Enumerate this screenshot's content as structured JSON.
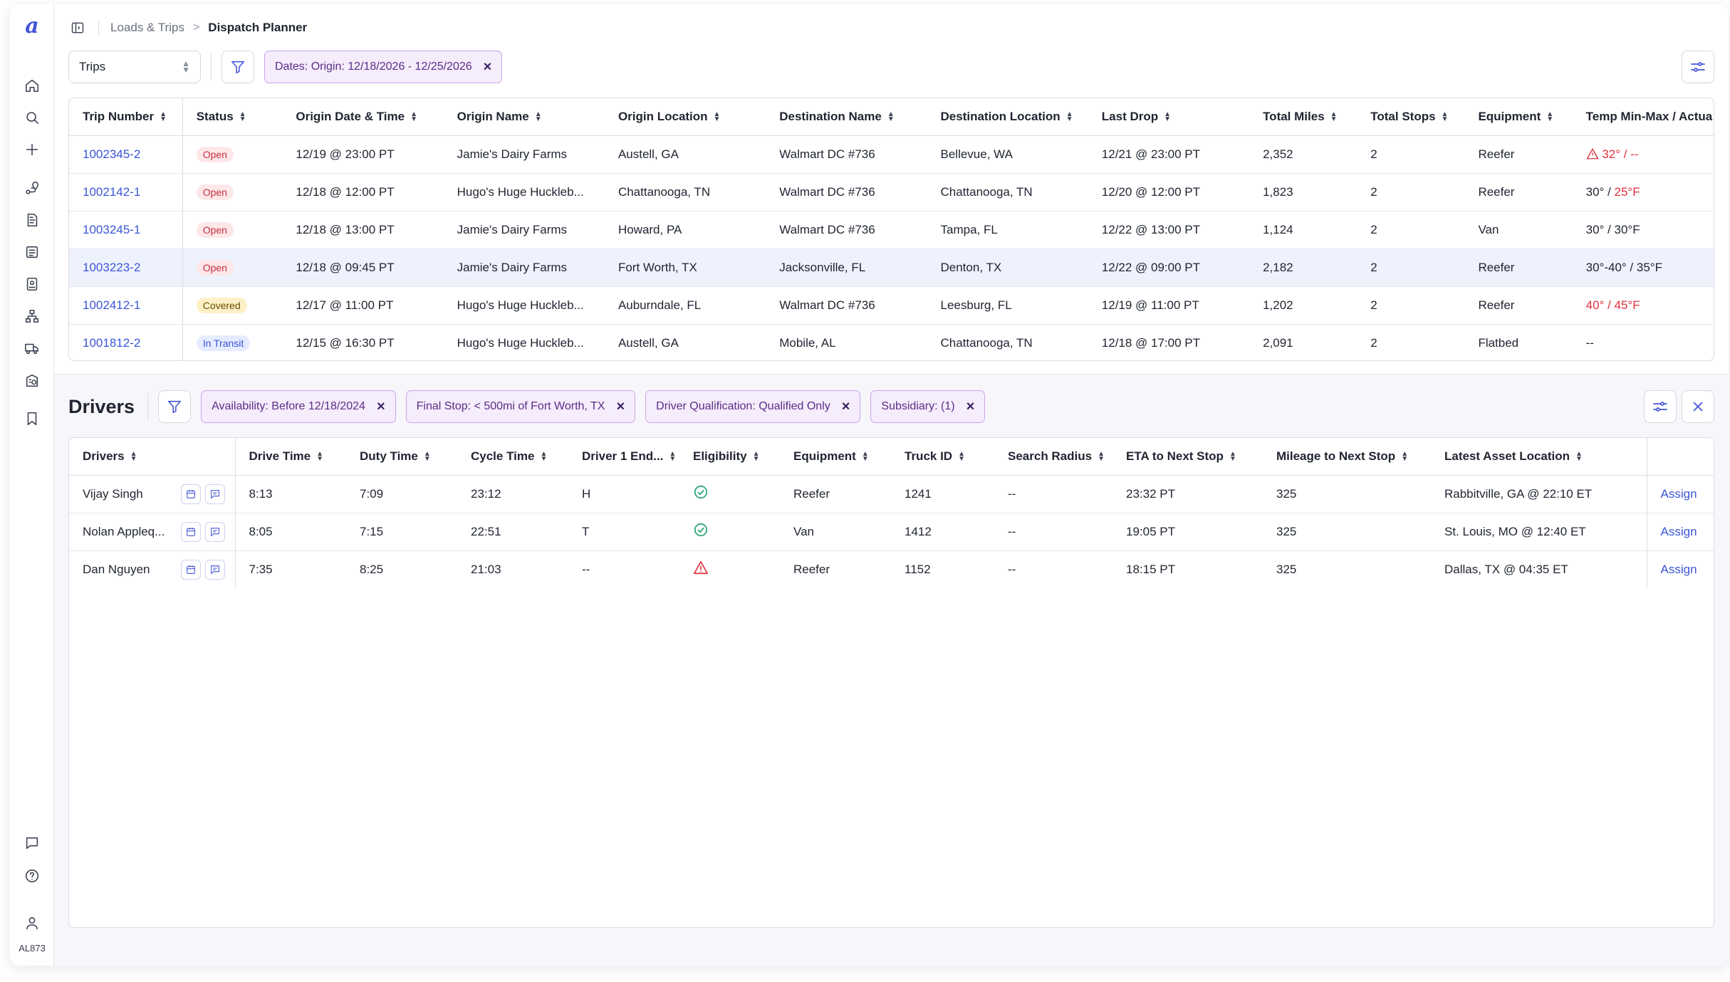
{
  "rail": {
    "logo_label": "a",
    "items": [
      "home-icon",
      "search-icon",
      "plus-icon",
      "route-icon",
      "document-icon",
      "invoice-icon",
      "badge-icon",
      "org-chart-icon",
      "truck-icon",
      "building-icon",
      "bookmark-icon"
    ],
    "bottom": [
      "chat-icon",
      "help-icon",
      "user-icon"
    ],
    "user_code": "AL873"
  },
  "breadcrumb": {
    "parent": "Loads & Trips",
    "separator": ">",
    "current": "Dispatch Planner"
  },
  "trips": {
    "select_value": "Trips",
    "filter_chip": "Dates: Origin: 12/18/2026 - 12/25/2026",
    "columns": [
      "Trip Number",
      "Status",
      "Origin Date & Time",
      "Origin Name",
      "Origin Location",
      "Destination Name",
      "Destination Location",
      "Last Drop",
      "Total Miles",
      "Total Stops",
      "Equipment",
      "Temp Min-Max / Actua"
    ],
    "rows": [
      {
        "trip": "1002345-2",
        "status": "Open",
        "origin_dt": "12/19 @ 23:00 PT",
        "origin_name": "Jamie's Dairy Farms",
        "origin_loc": "Austell, GA",
        "dest_name": "Walmart DC #736",
        "dest_loc": "Bellevue, WA",
        "last_drop": "12/21 @ 23:00 PT",
        "miles": "2,352",
        "stops": "2",
        "equipment": "Reefer",
        "temp_a": "32° / --",
        "temp_b": ""
      },
      {
        "trip": "1002142-1",
        "status": "Open",
        "origin_dt": "12/18 @ 12:00 PT",
        "origin_name": "Hugo's Huge Huckleb...",
        "origin_loc": "Chattanooga, TN",
        "dest_name": "Walmart DC #736",
        "dest_loc": "Chattanooga, TN",
        "last_drop": "12/20 @ 12:00 PT",
        "miles": "1,823",
        "stops": "2",
        "equipment": "Reefer",
        "temp_a": "30° / ",
        "temp_b": "25°F"
      },
      {
        "trip": "1003245-1",
        "status": "Open",
        "origin_dt": "12/18 @ 13:00 PT",
        "origin_name": "Jamie's Dairy Farms",
        "origin_loc": "Howard, PA",
        "dest_name": "Walmart DC #736",
        "dest_loc": "Tampa, FL",
        "last_drop": "12/22 @ 13:00 PT",
        "miles": "1,124",
        "stops": "2",
        "equipment": "Van",
        "temp_a": "30° / 30°F",
        "temp_b": ""
      },
      {
        "trip": "1003223-2",
        "status": "Open",
        "origin_dt": "12/18 @ 09:45 PT",
        "origin_name": "Jamie's Dairy Farms",
        "origin_loc": "Fort Worth, TX",
        "dest_name": "Jacksonville, FL",
        "dest_loc": "Denton, TX",
        "last_drop": "12/22 @ 09:00 PT",
        "miles": "2,182",
        "stops": "2",
        "equipment": "Reefer",
        "temp_a": "30°-40° / 35°F",
        "temp_b": ""
      },
      {
        "trip": "1002412-1",
        "status": "Covered",
        "origin_dt": "12/17 @ 11:00 PT",
        "origin_name": "Hugo's Huge Huckleb...",
        "origin_loc": "Auburndale, FL",
        "dest_name": "Walmart DC #736",
        "dest_loc": "Leesburg, FL",
        "last_drop": "12/19 @ 11:00 PT",
        "miles": "1,202",
        "stops": "2",
        "equipment": "Reefer",
        "temp_a": "",
        "temp_b": "40° / 45°F"
      },
      {
        "trip": "1001812-2",
        "status": "In Transit",
        "origin_dt": "12/15 @ 16:30 PT",
        "origin_name": "Hugo's Huge Huckleb...",
        "origin_loc": "Austell, GA",
        "dest_name": "Mobile, AL",
        "dest_loc": "Chattanooga, TN",
        "last_drop": "12/18 @ 17:00 PT",
        "miles": "2,091",
        "stops": "2",
        "equipment": "Flatbed",
        "temp_a": "--",
        "temp_b": ""
      }
    ]
  },
  "drivers": {
    "title": "Drivers",
    "chips": [
      "Availability: Before  12/18/2024",
      "Final Stop: < 500mi of Fort Worth, TX",
      "Driver Qualification: Qualified Only",
      "Subsidiary: (1)"
    ],
    "columns": [
      "Drivers",
      "Drive Time",
      "Duty Time",
      "Cycle Time",
      "Driver 1 End...",
      "Eligibility",
      "Equipment",
      "Truck ID",
      "Search Radius",
      "ETA to Next Stop",
      "Mileage to Next Stop",
      "Latest Asset Location"
    ],
    "rows": [
      {
        "name": "Vijay Singh",
        "drive": "8:13",
        "duty": "7:09",
        "cycle": "23:12",
        "end": "H",
        "eligibility": "eligible",
        "equipment": "Reefer",
        "truck": "1241",
        "radius": "--",
        "eta": "23:32 PT",
        "mileage": "325",
        "location": "Rabbitville, GA @ 22:10 ET",
        "action": "Assign"
      },
      {
        "name": "Nolan Appleq...",
        "drive": "8:05",
        "duty": "7:15",
        "cycle": "22:51",
        "end": "T",
        "eligibility": "eligible",
        "equipment": "Van",
        "truck": "1412",
        "radius": "--",
        "eta": "19:05 PT",
        "mileage": "325",
        "location": "St. Louis, MO @ 12:40 ET",
        "action": "Assign"
      },
      {
        "name": "Dan Nguyen",
        "drive": "7:35",
        "duty": "8:25",
        "cycle": "21:03",
        "end": "--",
        "eligibility": "warning",
        "equipment": "Reefer",
        "truck": "1152",
        "radius": "--",
        "eta": "18:15 PT",
        "mileage": "325",
        "location": "Dallas, TX @ 04:35 ET",
        "action": "Assign"
      }
    ]
  },
  "colors": {
    "accent": "#4455d8",
    "link": "#3a55d8",
    "danger": "#e0303c",
    "success": "#22a06b",
    "chip_bg": "#f5ecfc",
    "chip_border": "#c9a7e8"
  }
}
